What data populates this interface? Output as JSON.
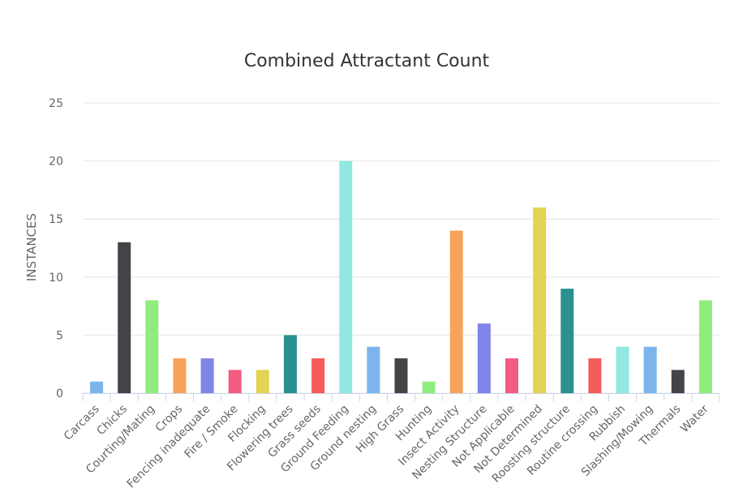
{
  "chart_data": {
    "type": "bar",
    "title": "Combined Attractant Count",
    "y_label": "INSTANCES",
    "categories": [
      "Carcass",
      "Chicks",
      "Courting/Mating",
      "Crops",
      "Fencing inadequate",
      "Fire / Smoke",
      "Flocking",
      "Flowering trees",
      "Grass seeds",
      "Ground Feeding",
      "Ground nesting",
      "High Grass",
      "Hunting",
      "Insect Activity",
      "Nesting Structure",
      "Not Applicable",
      "Not Determined",
      "Roosting structure",
      "Routine crossing",
      "Rubbish",
      "Slashing/Mowing",
      "Thermals",
      "Water"
    ],
    "values": [
      1,
      13,
      8,
      3,
      3,
      2,
      2,
      5,
      3,
      20,
      4,
      3,
      1,
      14,
      6,
      3,
      16,
      9,
      3,
      4,
      4,
      2,
      8
    ],
    "colors": [
      "#7cb5ec",
      "#434348",
      "#90ed7d",
      "#f7a35c",
      "#8085e9",
      "#f15c80",
      "#e4d354",
      "#2b908f",
      "#f45b5b",
      "#91e8e1",
      "#7cb5ec",
      "#434348",
      "#90ed7d",
      "#f7a35c",
      "#8085e9",
      "#f15c80",
      "#e4d354",
      "#2b908f",
      "#f45b5b",
      "#91e8e1",
      "#7cb5ec",
      "#434348",
      "#90ed7d"
    ],
    "ylim": [
      0,
      25
    ],
    "yticks": [
      0,
      5,
      10,
      15,
      20,
      25
    ],
    "grid": true
  }
}
